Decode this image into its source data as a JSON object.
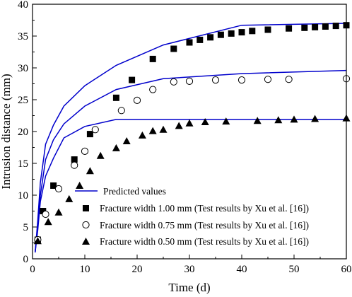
{
  "chart_data": {
    "type": "scatter",
    "xlabel": "Time (d)",
    "ylabel": "Intrusion distance (mm)",
    "xlim": [
      0,
      60
    ],
    "ylim": [
      0,
      40
    ],
    "xticks": [
      "0",
      "10",
      "20",
      "30",
      "40",
      "50",
      "60"
    ],
    "yticks": [
      "0",
      "5",
      "10",
      "15",
      "20",
      "25",
      "30",
      "35",
      "40"
    ],
    "grid": false,
    "legend_position": "bottom-right",
    "line_color": "#0000cc",
    "marker_color": "#000000",
    "predicted_label": "Predicted values",
    "predicted": [
      {
        "width": "1.00 mm",
        "x": [
          0.5,
          1,
          1.5,
          2.5,
          4,
          6,
          10,
          16,
          25,
          40,
          60
        ],
        "y": [
          1,
          6,
          12,
          18,
          21,
          24,
          27.2,
          30.4,
          33.6,
          36.7,
          37
        ]
      },
      {
        "width": "0.75 mm",
        "x": [
          0.5,
          1,
          1.5,
          2.5,
          4,
          6,
          10,
          16,
          25,
          40,
          60
        ],
        "y": [
          1,
          5,
          10,
          15.6,
          18.7,
          21.2,
          24,
          26.6,
          28.3,
          29.1,
          29.6
        ]
      },
      {
        "width": "0.50 mm",
        "x": [
          0.5,
          1,
          1.5,
          2.5,
          4,
          6,
          10,
          16,
          25,
          40,
          60
        ],
        "y": [
          1,
          4.5,
          9,
          13,
          15.8,
          19,
          20.8,
          21.9,
          21.9,
          21.9,
          21.9
        ]
      }
    ],
    "series": [
      {
        "name": "Fracture width 1.00 mm  (Test results by Xu et al. [16])",
        "marker": "square",
        "x": [
          1,
          2,
          4,
          8,
          11,
          16,
          19,
          23,
          27,
          30,
          32,
          34,
          36,
          38,
          40,
          42,
          45,
          49,
          52,
          54,
          56,
          58,
          60
        ],
        "y": [
          3,
          7.5,
          11.5,
          15.6,
          19.6,
          25.3,
          28.1,
          31.4,
          33,
          34,
          34.4,
          34.8,
          35.2,
          35.4,
          35.6,
          35.8,
          36,
          36.2,
          36.3,
          36.4,
          36.5,
          36.6,
          36.7
        ]
      },
      {
        "name": "Fracture width 0.75 mm  (Test results by Xu et al. [16])",
        "marker": "circle",
        "x": [
          1,
          2.5,
          5,
          8,
          10,
          12,
          17,
          20,
          23,
          27,
          30,
          35,
          40,
          45,
          49,
          60
        ],
        "y": [
          3,
          7,
          11,
          14.7,
          16.9,
          20.3,
          23.3,
          24.9,
          26.6,
          27.8,
          27.9,
          28.1,
          28.1,
          28.2,
          28.2,
          28.3
        ]
      },
      {
        "name": "Fracture width 0.50 mm  (Test results by Xu et al. [16])",
        "marker": "triangle",
        "x": [
          1,
          3,
          5,
          7,
          9,
          11,
          13,
          16,
          18,
          21,
          23,
          25,
          28,
          30,
          33,
          37,
          43,
          47,
          50,
          54,
          60
        ],
        "y": [
          2.8,
          5.8,
          7.3,
          9.4,
          11.5,
          13.8,
          16.2,
          17.4,
          18.5,
          19.4,
          20.1,
          20.3,
          20.9,
          21.3,
          21.5,
          21.6,
          21.7,
          21.8,
          21.9,
          22,
          22.1
        ]
      }
    ]
  }
}
